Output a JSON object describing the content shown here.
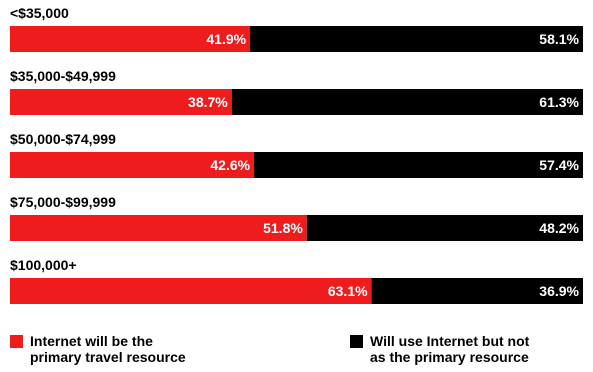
{
  "chart_data": {
    "type": "bar",
    "orientation": "horizontal",
    "stacked": true,
    "categories": [
      "<$35,000",
      "$35,000-$49,999",
      "$50,000-$74,999",
      "$75,000-$99,999",
      "$100,000+"
    ],
    "series": [
      {
        "name": "Internet will be the primary travel resource",
        "values": [
          41.9,
          38.7,
          42.6,
          51.8,
          63.1
        ],
        "labels": [
          "41.9%",
          "38.7%",
          "42.6%",
          "51.8%",
          "63.1%"
        ],
        "color": "#ee1c1c"
      },
      {
        "name": "Will use Internet but not as the primary resource",
        "values": [
          58.1,
          61.3,
          57.4,
          48.2,
          36.9
        ],
        "labels": [
          "58.1%",
          "61.3%",
          "57.4%",
          "48.2%",
          "36.9%"
        ],
        "color": "#000000"
      }
    ],
    "xlim": [
      0,
      100
    ],
    "grid": false,
    "legend_position": "bottom"
  },
  "legend": {
    "red_line1": "Internet will be the",
    "red_line2": "primary travel resource",
    "black_line1": "Will use Internet but not",
    "black_line2": "as the primary resource"
  }
}
